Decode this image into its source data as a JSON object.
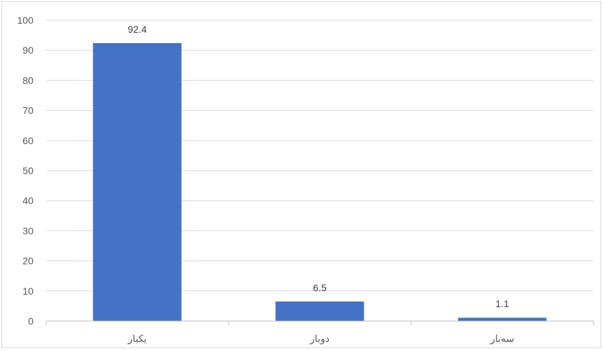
{
  "chart_data": {
    "type": "bar",
    "categories": [
      "یکبار",
      "دوبار",
      "سەبار"
    ],
    "values": [
      92.4,
      6.5,
      1.1
    ],
    "data_labels": [
      "92.4",
      "6.5",
      "1.1"
    ],
    "title": "",
    "xlabel": "",
    "ylabel": "",
    "ylim": [
      0,
      100
    ],
    "yticks": [
      0,
      10,
      20,
      30,
      40,
      50,
      60,
      70,
      80,
      90,
      100
    ],
    "grid": true,
    "legend": "none",
    "colors": {
      "bar": "#4472c4",
      "gridline": "#d9d9d9",
      "axis": "#bfbfbf",
      "text": "#595959"
    }
  }
}
